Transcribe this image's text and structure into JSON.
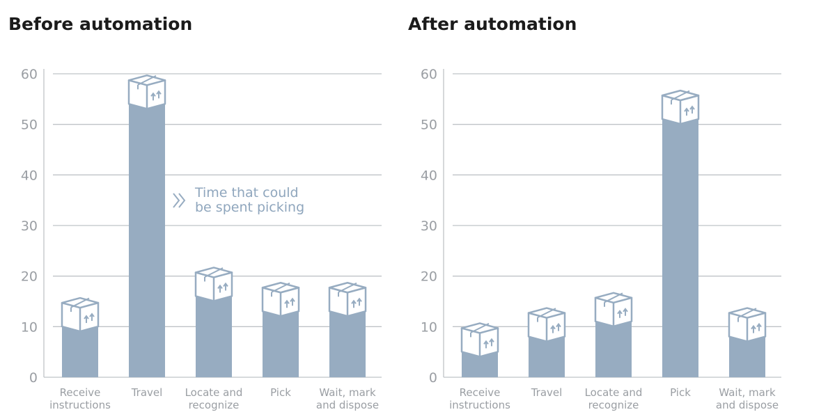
{
  "chart_data": [
    {
      "type": "bar",
      "title": "Before automation",
      "categories": [
        [
          "Receive",
          "instructions"
        ],
        [
          "Travel"
        ],
        [
          "Locate and",
          "recognize"
        ],
        [
          "Pick"
        ],
        [
          "Wait, mark",
          "and dispose"
        ]
      ],
      "values": [
        11,
        55,
        17,
        14,
        14
      ],
      "ylim": [
        0,
        60
      ],
      "yticks": [
        0,
        10,
        20,
        30,
        40,
        50,
        60
      ],
      "grid": true,
      "annotation": [
        "Time that could",
        "be spent picking"
      ],
      "annotation_icon": "double-chevron-right-icon",
      "bar_icon": "box-icon",
      "colors": {
        "bar": "#97acc1",
        "grid": "#bfc3c7",
        "icon_stroke": "#97acc1"
      }
    },
    {
      "type": "bar",
      "title": "After automation",
      "categories": [
        [
          "Receive",
          "instructions"
        ],
        [
          "Travel"
        ],
        [
          "Locate and",
          "recognize"
        ],
        [
          "Pick"
        ],
        [
          "Wait, mark",
          "and dispose"
        ]
      ],
      "values": [
        6,
        9,
        12,
        52,
        9
      ],
      "ylim": [
        0,
        60
      ],
      "yticks": [
        0,
        10,
        20,
        30,
        40,
        50,
        60
      ],
      "grid": true,
      "bar_icon": "box-icon",
      "colors": {
        "bar": "#97acc1",
        "grid": "#bfc3c7",
        "icon_stroke": "#97acc1"
      }
    }
  ]
}
